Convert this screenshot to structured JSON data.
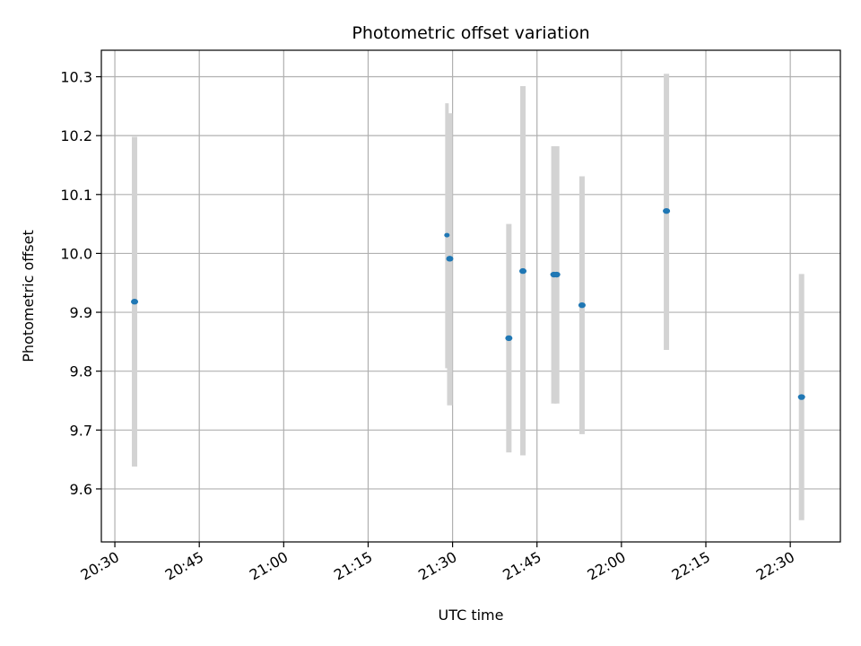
{
  "chart_data": {
    "type": "scatter",
    "title": "Photometric offset variation",
    "xlabel": "UTC time",
    "ylabel": "Photometric offset",
    "x_tick_labels": [
      "20:30",
      "20:45",
      "21:00",
      "21:15",
      "21:30",
      "21:45",
      "22:00",
      "22:15",
      "22:30"
    ],
    "x_ticks_minutes": [
      0,
      15,
      30,
      45,
      60,
      75,
      90,
      105,
      120
    ],
    "x_origin_label": "20:30",
    "xlim_minutes": [
      -2.4,
      128.9
    ],
    "y_ticks": [
      9.6,
      9.7,
      9.8,
      9.9,
      10.0,
      10.1,
      10.2,
      10.3
    ],
    "y_tick_labels": [
      "9.6",
      "9.7",
      "9.8",
      "9.9",
      "10.0",
      "10.1",
      "10.2",
      "10.3"
    ],
    "ylim": [
      9.51,
      10.345
    ],
    "grid": true,
    "colors": {
      "point": "#1f77b4",
      "errorbar": "#d3d3d3",
      "grid": "#b0b0b0"
    },
    "points": [
      {
        "t": "20:33:30",
        "m": 3.5,
        "y": 9.918,
        "lo": 9.638,
        "hi": 10.198,
        "size": "large"
      },
      {
        "t": "21:29:00",
        "m": 59.0,
        "y": 10.031,
        "lo": 9.805,
        "hi": 10.255,
        "size": "small"
      },
      {
        "t": "21:29:30",
        "m": 59.5,
        "y": 9.991,
        "lo": 9.742,
        "hi": 10.238,
        "size": "large"
      },
      {
        "t": "21:40:00",
        "m": 70.0,
        "y": 9.856,
        "lo": 9.662,
        "hi": 10.05,
        "size": "large"
      },
      {
        "t": "21:42:30",
        "m": 72.5,
        "y": 9.97,
        "lo": 9.657,
        "hi": 10.284,
        "size": "large"
      },
      {
        "t": "21:48:00",
        "m": 78.0,
        "y": 9.964,
        "lo": 9.745,
        "hi": 10.182,
        "size": "large"
      },
      {
        "t": "21:48:30",
        "m": 78.5,
        "y": 9.964,
        "lo": 9.745,
        "hi": 10.182,
        "size": "large"
      },
      {
        "t": "21:53:00",
        "m": 83.0,
        "y": 9.912,
        "lo": 9.693,
        "hi": 10.131,
        "size": "large"
      },
      {
        "t": "22:08:00",
        "m": 98.0,
        "y": 10.072,
        "lo": 9.836,
        "hi": 10.305,
        "size": "large"
      },
      {
        "t": "22:32:00",
        "m": 122.0,
        "y": 9.756,
        "lo": 9.547,
        "hi": 9.965,
        "size": "large"
      }
    ]
  }
}
